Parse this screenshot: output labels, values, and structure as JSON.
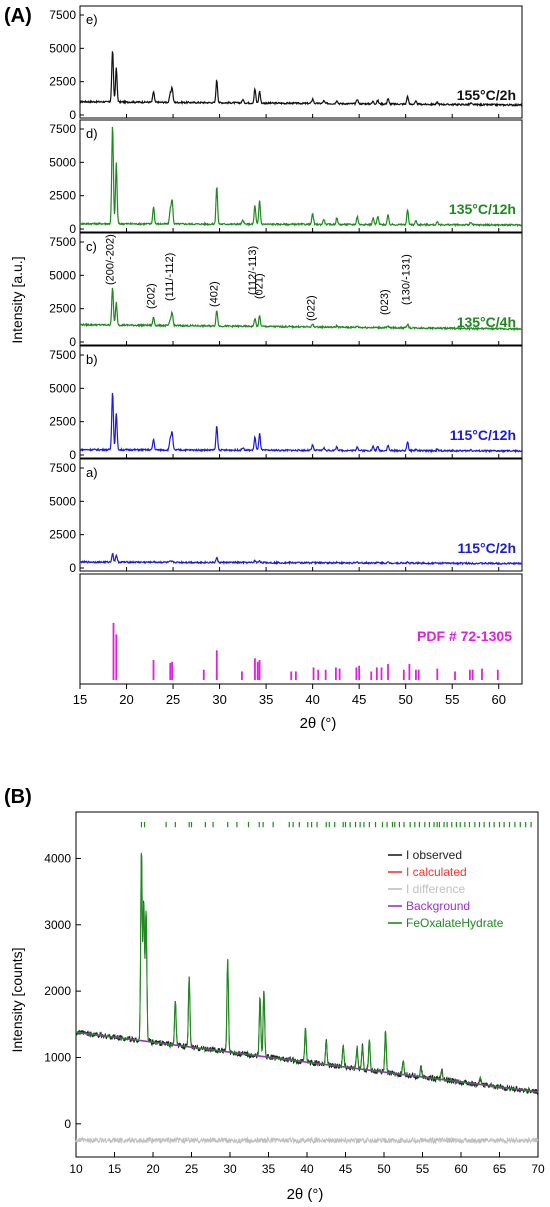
{
  "panel_a": {
    "label": "(A)",
    "ylabel": "Intensity [a.u.]",
    "xlabel": "2θ (°)",
    "x_ticks": [
      "15",
      "20",
      "25",
      "30",
      "35",
      "40",
      "45",
      "50",
      "55",
      "60"
    ],
    "y_ticks": [
      "0",
      "2500",
      "5000",
      "7500"
    ],
    "subpanels": [
      {
        "letter": "e)",
        "condition": "155°C/2h",
        "color": "#111111"
      },
      {
        "letter": "d)",
        "condition": "135°C/12h",
        "color": "#1e8a1e"
      },
      {
        "letter": "c)",
        "condition": "135°C/4h",
        "color": "#1e8a1e"
      },
      {
        "letter": "b)",
        "condition": "115°C/12h",
        "color": "#1a1adb"
      },
      {
        "letter": "a)",
        "condition": "115°C/2h",
        "color": "#1a1adb"
      }
    ],
    "hkl_labels": [
      "(200/-202)",
      "(202)",
      "(111/-112)",
      "(402)",
      "(112/-113)",
      "(021)",
      "(022)",
      "(023)",
      "(130/-131)"
    ],
    "pdf_label": "PDF # 72-1305",
    "pdf_color": "#e020e0"
  },
  "panel_b": {
    "label": "(B)",
    "ylabel": "Intensity [counts]",
    "xlabel": "2θ (°)",
    "x_ticks": [
      "10",
      "15",
      "20",
      "25",
      "30",
      "35",
      "40",
      "45",
      "50",
      "55",
      "60",
      "65",
      "70"
    ],
    "y_ticks": [
      "0",
      "1000",
      "2000",
      "3000",
      "4000"
    ],
    "legend": [
      {
        "name": "I observed",
        "color": "#222222"
      },
      {
        "name": "I calculated",
        "color": "#ff3030"
      },
      {
        "name": "I difference",
        "color": "#c0c0c0"
      },
      {
        "name": "Background",
        "color": "#9b30d0"
      },
      {
        "name": "FeOxalateHydrate",
        "color": "#1e8a1e"
      }
    ]
  },
  "chart_data": [
    {
      "type": "line",
      "title": "(A)",
      "xlabel": "2θ (°)",
      "ylabel": "Intensity [a.u.]",
      "xlim": [
        15,
        62.5
      ],
      "ylim": [
        0,
        7500
      ],
      "peak_positions": [
        18.5,
        18.9,
        22.9,
        24.7,
        24.9,
        29.7,
        32.5,
        33.8,
        34.3,
        40.0,
        41.2,
        42.6,
        44.8,
        46.5,
        47.0,
        48.1,
        50.2,
        51.1,
        53.4,
        57.0
      ],
      "series": [
        {
          "name": "155°C/2h",
          "baseline": 1000,
          "peak_heights": [
            4900,
            3600,
            1800,
            1650,
            2100,
            2700,
            1250,
            2050,
            1900,
            1350,
            1200,
            1250,
            1350,
            1200,
            1250,
            1400,
            1600,
            1200,
            1150,
            1100
          ]
        },
        {
          "name": "135°C/12h",
          "baseline": 400,
          "peak_heights": [
            7800,
            5000,
            1700,
            1500,
            2200,
            3200,
            700,
            1800,
            2200,
            1200,
            800,
            900,
            1000,
            900,
            1000,
            1100,
            1500,
            700,
            600,
            600
          ]
        },
        {
          "name": "135°C/4h",
          "baseline": 1300,
          "peak_heights": [
            4100,
            3000,
            1900,
            1700,
            2300,
            2500,
            1300,
            1900,
            2100,
            1500,
            1300,
            1400,
            1400,
            1300,
            1300,
            1400,
            1600,
            1200,
            1100,
            1100
          ]
        },
        {
          "name": "115°C/12h",
          "baseline": 400,
          "peak_heights": [
            4800,
            3200,
            1200,
            1300,
            1700,
            2200,
            600,
            1400,
            1700,
            800,
            600,
            700,
            700,
            700,
            700,
            800,
            1100,
            500,
            500,
            500
          ]
        },
        {
          "name": "115°C/2h",
          "baseline": 450,
          "peak_heights": [
            1100,
            1000,
            500,
            500,
            500,
            800,
            450,
            600,
            600,
            500,
            450,
            500,
            500,
            480,
            480,
            500,
            500,
            450,
            450,
            450
          ]
        }
      ],
      "reference": {
        "name": "PDF # 72-1305",
        "positions": [
          18.6,
          18.9,
          22.9,
          24.7,
          24.9,
          28.3,
          29.7,
          32.4,
          33.8,
          34.1,
          34.3,
          37.7,
          38.2,
          40.1,
          40.6,
          41.4,
          42.5,
          42.9,
          44.7,
          45.0,
          46.3,
          46.9,
          47.4,
          48.1,
          49.8,
          50.4,
          51.1,
          51.4,
          53.4,
          55.3,
          56.9,
          57.2,
          58.2,
          59.9
        ],
        "relative_intensity": [
          100,
          80,
          35,
          30,
          32,
          18,
          52,
          15,
          38,
          32,
          35,
          15,
          15,
          22,
          18,
          18,
          22,
          20,
          22,
          25,
          15,
          22,
          22,
          28,
          18,
          28,
          18,
          18,
          20,
          15,
          18,
          18,
          20,
          18
        ]
      }
    },
    {
      "type": "line",
      "title": "(B)",
      "xlabel": "2θ (°)",
      "ylabel": "Intensity [counts]",
      "xlim": [
        10,
        70
      ],
      "ylim": [
        -500,
        4700
      ],
      "background": {
        "x": [
          10,
          70
        ],
        "y": [
          1380,
          480
        ]
      },
      "peaks": [
        {
          "x": 18.5,
          "y": 4100
        },
        {
          "x": 18.8,
          "y": 3300
        },
        {
          "x": 19.1,
          "y": 3200
        },
        {
          "x": 22.9,
          "y": 1850
        },
        {
          "x": 24.7,
          "y": 2200
        },
        {
          "x": 29.7,
          "y": 2480
        },
        {
          "x": 33.9,
          "y": 1900
        },
        {
          "x": 34.4,
          "y": 2000
        },
        {
          "x": 39.8,
          "y": 1450
        },
        {
          "x": 42.5,
          "y": 1250
        },
        {
          "x": 44.7,
          "y": 1180
        },
        {
          "x": 46.5,
          "y": 1150
        },
        {
          "x": 47.2,
          "y": 1180
        },
        {
          "x": 48.1,
          "y": 1270
        },
        {
          "x": 50.2,
          "y": 1400
        },
        {
          "x": 52.5,
          "y": 950
        },
        {
          "x": 54.8,
          "y": 850
        },
        {
          "x": 57.5,
          "y": 800
        },
        {
          "x": 62.5,
          "y": 700
        }
      ],
      "difference_offset": -250,
      "reflection_ticks": [
        18.5,
        18.9,
        21.7,
        22.9,
        24.7,
        25.0,
        26.8,
        27.8,
        29.7,
        30.9,
        32.4,
        33.8,
        34.3,
        35.6,
        37.7,
        38.2,
        39.0,
        40.1,
        40.6,
        41.3,
        42.5,
        42.9,
        43.6,
        44.7,
        45.0,
        45.6,
        46.3,
        46.9,
        47.4,
        48.1,
        48.9,
        49.8,
        50.4,
        51.1,
        51.4,
        52.0,
        52.6,
        53.4,
        54.0,
        54.6,
        55.3,
        55.9,
        56.5,
        56.9,
        57.2,
        57.8,
        58.2,
        58.8,
        59.4,
        59.9,
        60.5,
        61.1,
        61.8,
        62.4,
        63.0,
        63.7,
        64.3,
        65.0,
        65.6,
        66.3,
        67.0,
        67.7,
        68.4,
        69.1
      ]
    }
  ]
}
